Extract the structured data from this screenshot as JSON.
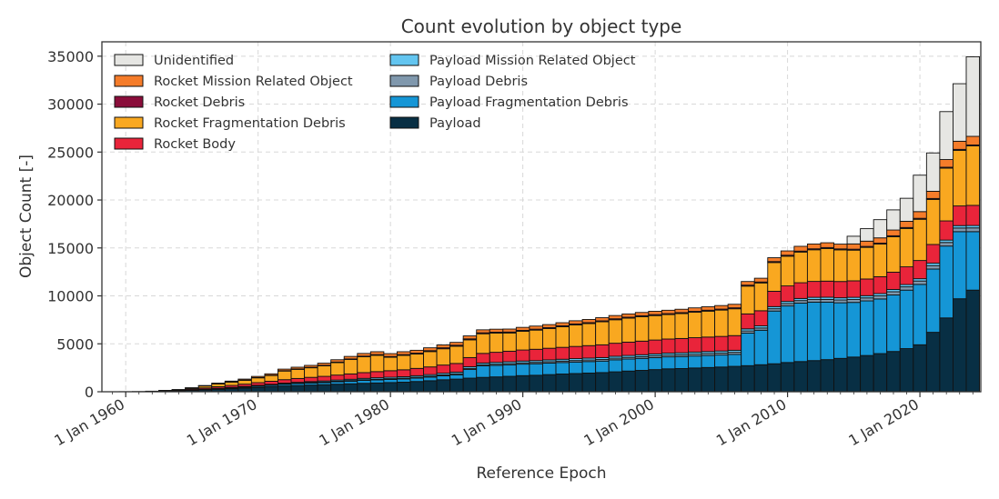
{
  "chart_data": {
    "type": "bar",
    "stacked": true,
    "title": "Count evolution by object type",
    "xlabel": "Reference Epoch",
    "ylabel": "Object Count [-]",
    "ylim": [
      0,
      36500
    ],
    "xlim": [
      1958.2,
      2024.6
    ],
    "grid": true,
    "legend_position": "top-left",
    "x_tick_labels": [
      "1 Jan 1960",
      "1 Jan 1970",
      "1 Jan 1980",
      "1 Jan 1990",
      "1 Jan 2000",
      "1 Jan 2010",
      "1 Jan 2020"
    ],
    "x_tick_values": [
      1960,
      1970,
      1980,
      1990,
      2000,
      2010,
      2020
    ],
    "y_ticks": [
      0,
      5000,
      10000,
      15000,
      20000,
      25000,
      30000,
      35000
    ],
    "x": [
      1960,
      1961,
      1962,
      1963,
      1964,
      1965,
      1966,
      1967,
      1968,
      1969,
      1970,
      1971,
      1972,
      1973,
      1974,
      1975,
      1976,
      1977,
      1978,
      1979,
      1980,
      1981,
      1982,
      1983,
      1984,
      1985,
      1986,
      1987,
      1988,
      1989,
      1990,
      1991,
      1992,
      1993,
      1994,
      1995,
      1996,
      1997,
      1998,
      1999,
      2000,
      2001,
      2002,
      2003,
      2004,
      2005,
      2006,
      2007,
      2008,
      2009,
      2010,
      2011,
      2012,
      2013,
      2014,
      2015,
      2016,
      2017,
      2018,
      2019,
      2020,
      2021,
      2022,
      2023,
      2024
    ],
    "series": [
      {
        "name": "Payload",
        "color": "#082f44",
        "values": [
          5,
          10,
          30,
          60,
          100,
          150,
          200,
          260,
          320,
          380,
          450,
          520,
          600,
          650,
          700,
          740,
          790,
          830,
          880,
          920,
          960,
          1000,
          1070,
          1150,
          1250,
          1320,
          1420,
          1500,
          1550,
          1610,
          1680,
          1720,
          1790,
          1850,
          1900,
          1950,
          2000,
          2080,
          2160,
          2230,
          2310,
          2390,
          2420,
          2480,
          2530,
          2580,
          2650,
          2720,
          2820,
          2920,
          3050,
          3150,
          3250,
          3350,
          3480,
          3620,
          3780,
          3980,
          4200,
          4500,
          4900,
          6200,
          7700,
          9700,
          10600
        ]
      },
      {
        "name": "Payload Fragmentation Debris",
        "color": "#1596d6",
        "values": [
          0,
          0,
          0,
          0,
          0,
          20,
          40,
          60,
          80,
          100,
          130,
          150,
          180,
          200,
          210,
          220,
          250,
          270,
          300,
          310,
          320,
          330,
          350,
          380,
          410,
          450,
          900,
          1200,
          1200,
          1200,
          1200,
          1200,
          1200,
          1200,
          1200,
          1200,
          1200,
          1250,
          1250,
          1250,
          1250,
          1250,
          1250,
          1250,
          1250,
          1250,
          1250,
          3400,
          3600,
          5500,
          5900,
          6100,
          6100,
          6000,
          5800,
          5700,
          5700,
          5700,
          5900,
          6100,
          6300,
          6600,
          7500,
          7000,
          6100
        ]
      },
      {
        "name": "Payload Debris",
        "color": "#8098ad",
        "values": [
          0,
          0,
          0,
          0,
          0,
          5,
          10,
          15,
          20,
          25,
          30,
          35,
          40,
          45,
          50,
          55,
          60,
          70,
          75,
          80,
          85,
          90,
          95,
          100,
          105,
          110,
          115,
          120,
          125,
          130,
          135,
          140,
          145,
          150,
          155,
          160,
          165,
          170,
          175,
          180,
          185,
          190,
          195,
          200,
          205,
          210,
          215,
          220,
          230,
          240,
          250,
          260,
          270,
          280,
          290,
          300,
          310,
          320,
          330,
          340,
          350,
          360,
          370,
          380,
          390
        ]
      },
      {
        "name": "Payload Mission Related Object",
        "color": "#63c5f0",
        "values": [
          0,
          0,
          0,
          0,
          0,
          10,
          20,
          30,
          40,
          50,
          60,
          70,
          80,
          90,
          100,
          110,
          120,
          130,
          140,
          150,
          150,
          150,
          160,
          160,
          170,
          170,
          180,
          180,
          190,
          190,
          190,
          190,
          190,
          190,
          200,
          200,
          200,
          200,
          200,
          200,
          200,
          200,
          200,
          210,
          210,
          210,
          210,
          220,
          220,
          220,
          220,
          220,
          230,
          230,
          230,
          230,
          230,
          240,
          240,
          240,
          240,
          250,
          250,
          250,
          250
        ]
      },
      {
        "name": "Rocket Body",
        "color": "#e9243a",
        "values": [
          5,
          10,
          30,
          50,
          70,
          100,
          130,
          160,
          200,
          240,
          280,
          320,
          360,
          400,
          440,
          480,
          520,
          560,
          600,
          640,
          680,
          720,
          760,
          800,
          850,
          900,
          950,
          1000,
          1050,
          1100,
          1150,
          1180,
          1210,
          1240,
          1270,
          1300,
          1330,
          1360,
          1390,
          1420,
          1450,
          1470,
          1490,
          1500,
          1510,
          1520,
          1530,
          1560,
          1580,
          1600,
          1620,
          1640,
          1660,
          1680,
          1700,
          1720,
          1740,
          1760,
          1800,
          1850,
          1900,
          1950,
          2000,
          2050,
          2100
        ]
      },
      {
        "name": "Rocket Fragmentation Debris",
        "color": "#f9a820",
        "values": [
          0,
          0,
          0,
          20,
          40,
          100,
          200,
          300,
          350,
          400,
          500,
          600,
          900,
          950,
          1000,
          1100,
          1300,
          1500,
          1650,
          1700,
          1400,
          1500,
          1500,
          1600,
          1700,
          1800,
          1850,
          2050,
          2000,
          1900,
          1950,
          2000,
          2050,
          2150,
          2250,
          2300,
          2400,
          2450,
          2500,
          2550,
          2550,
          2550,
          2600,
          2650,
          2700,
          2750,
          2800,
          2900,
          2900,
          3000,
          3100,
          3200,
          3300,
          3400,
          3300,
          3200,
          3300,
          3400,
          3700,
          4000,
          4300,
          4700,
          5500,
          5800,
          6200
        ]
      },
      {
        "name": "Rocket Debris",
        "color": "#8a0d3a",
        "values": [
          0,
          0,
          0,
          0,
          0,
          5,
          10,
          15,
          20,
          25,
          30,
          35,
          40,
          45,
          50,
          55,
          60,
          65,
          70,
          75,
          80,
          85,
          90,
          95,
          100,
          100,
          100,
          100,
          100,
          100,
          100,
          100,
          100,
          100,
          100,
          100,
          100,
          100,
          100,
          100,
          100,
          100,
          100,
          100,
          100,
          100,
          100,
          100,
          100,
          100,
          100,
          100,
          100,
          100,
          100,
          100,
          100,
          100,
          100,
          100,
          100,
          100,
          100,
          100,
          100
        ]
      },
      {
        "name": "Rocket Mission Related Object",
        "color": "#f57c2a",
        "values": [
          0,
          0,
          0,
          10,
          20,
          30,
          40,
          60,
          80,
          100,
          120,
          140,
          160,
          180,
          200,
          220,
          240,
          260,
          280,
          300,
          300,
          300,
          300,
          300,
          300,
          300,
          310,
          310,
          310,
          310,
          310,
          320,
          320,
          320,
          330,
          330,
          330,
          340,
          340,
          340,
          350,
          350,
          350,
          360,
          360,
          370,
          370,
          380,
          390,
          400,
          450,
          500,
          500,
          500,
          500,
          550,
          550,
          550,
          600,
          650,
          700,
          750,
          800,
          850,
          900
        ]
      },
      {
        "name": "Unidentified",
        "color": "#e6e6e3",
        "values": [
          0,
          0,
          0,
          0,
          0,
          0,
          0,
          0,
          0,
          0,
          0,
          0,
          0,
          0,
          0,
          0,
          0,
          0,
          0,
          0,
          0,
          0,
          0,
          0,
          0,
          0,
          0,
          0,
          0,
          0,
          0,
          0,
          0,
          0,
          0,
          0,
          0,
          0,
          0,
          0,
          0,
          0,
          0,
          0,
          0,
          0,
          0,
          0,
          0,
          0,
          0,
          0,
          0,
          0,
          0,
          800,
          1300,
          1900,
          2100,
          2400,
          3800,
          4000,
          5000,
          6000,
          8300
        ]
      }
    ],
    "legend": {
      "columns": [
        [
          "Unidentified",
          "Rocket Mission Related Object",
          "Rocket Debris",
          "Rocket Fragmentation Debris",
          "Rocket Body"
        ],
        [
          "Payload Mission Related Object",
          "Payload Debris",
          "Payload Fragmentation Debris",
          "Payload"
        ]
      ]
    }
  }
}
